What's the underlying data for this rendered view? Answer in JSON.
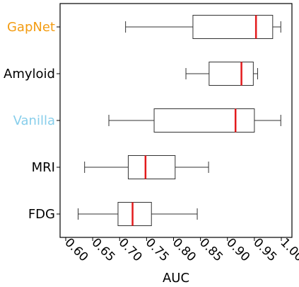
{
  "chart_data": {
    "type": "boxplot",
    "orientation": "horizontal",
    "xlabel": "AUC",
    "xlim": [
      0.6,
      1.005
    ],
    "xticks": [
      "0.60",
      "0.65",
      "0.70",
      "0.75",
      "0.80",
      "0.85",
      "0.90",
      "0.95",
      "1.00"
    ],
    "tick_rotation": "-45deg",
    "grid": false,
    "median_color": "#e31a1c",
    "box_color": "#333333",
    "categories": [
      {
        "label": "GapNet",
        "label_color": "#f39c12",
        "whisker_low": 0.711,
        "q1": 0.836,
        "median": 0.953,
        "q3": 0.984,
        "whisker_high": 0.999
      },
      {
        "label": "Amyloid",
        "label_color": "#000000",
        "whisker_low": 0.823,
        "q1": 0.866,
        "median": 0.926,
        "q3": 0.948,
        "whisker_high": 0.956
      },
      {
        "label": "Vanilla",
        "label_color": "#87ceeb",
        "whisker_low": 0.68,
        "q1": 0.764,
        "median": 0.915,
        "q3": 0.95,
        "whisker_high": 0.999
      },
      {
        "label": "MRI",
        "label_color": "#000000",
        "whisker_low": 0.635,
        "q1": 0.716,
        "median": 0.748,
        "q3": 0.803,
        "whisker_high": 0.865
      },
      {
        "label": "FDG",
        "label_color": "#000000",
        "whisker_low": 0.623,
        "q1": 0.697,
        "median": 0.724,
        "q3": 0.759,
        "whisker_high": 0.844
      }
    ]
  }
}
